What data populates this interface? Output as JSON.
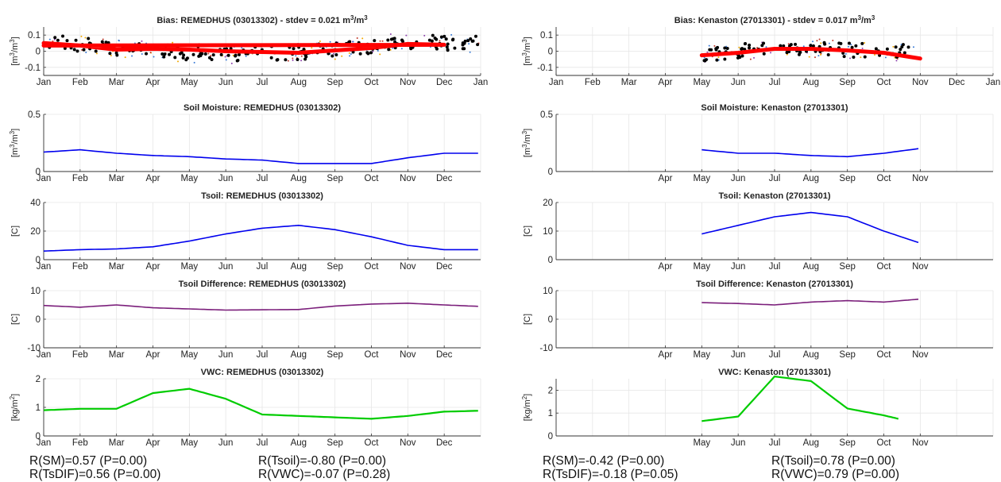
{
  "chart_data": [
    {
      "type": "scatter",
      "title": "Bias: REMEDHUS (03013302) - stdev = 0.021 m³/m³",
      "ylabel": "[m³/m³]",
      "ylim": [
        -0.15,
        0.15
      ],
      "yticks": [
        -0.1,
        0,
        0.1
      ],
      "x_domain": [
        "Jan",
        "Jan"
      ],
      "xticks": [
        "Jan",
        "Feb",
        "Mar",
        "Apr",
        "May",
        "Jun",
        "Jul",
        "Aug",
        "Sep",
        "Oct",
        "Nov",
        "Dec",
        "Jan"
      ],
      "grid": true,
      "colors": {
        "points": "#000000",
        "trend": "#ff0000"
      },
      "trend": {
        "x": [
          "Jan",
          "Feb",
          "Mar",
          "Apr",
          "May",
          "Jun",
          "Jul",
          "Aug",
          "Sep",
          "Oct",
          "Nov",
          "Dec",
          "Jan"
        ],
        "y": [
          0.05,
          0.035,
          0.01,
          0.015,
          0.01,
          0.0,
          -0.005,
          -0.01,
          0.005,
          0.02,
          0.045,
          0.04,
          0.035
        ]
      },
      "points": {
        "x": [
          "Jan",
          "Feb",
          "Mar",
          "Apr",
          "May",
          "Jun",
          "Jul",
          "Aug",
          "Sep",
          "Oct",
          "Nov",
          "Dec"
        ],
        "y": [
          0.06,
          0.04,
          0.02,
          0.01,
          -0.01,
          -0.02,
          -0.01,
          -0.01,
          0.01,
          0.03,
          0.06,
          0.05
        ]
      }
    },
    {
      "type": "line",
      "title": "Soil Moisture: REMEDHUS (03013302)",
      "ylabel": "[m³/m³]",
      "ylim": [
        0,
        0.5
      ],
      "yticks": [
        0,
        0.5
      ],
      "xticks": [
        "Jan",
        "Feb",
        "Mar",
        "Apr",
        "May",
        "Jun",
        "Jul",
        "Aug",
        "Sep",
        "Oct",
        "Nov",
        "Dec"
      ],
      "grid": true,
      "series": [
        {
          "color": "#0000ee",
          "x": [
            "Jan",
            "Feb",
            "Mar",
            "Apr",
            "May",
            "Jun",
            "Jul",
            "Aug",
            "Sep",
            "Oct",
            "Nov",
            "Dec",
            "Dec-end"
          ],
          "values": [
            0.17,
            0.19,
            0.16,
            0.14,
            0.13,
            0.11,
            0.1,
            0.07,
            0.07,
            0.07,
            0.12,
            0.16,
            0.16
          ]
        }
      ]
    },
    {
      "type": "line",
      "title": "Tsoil: REMEDHUS (03013302)",
      "ylabel": "[C]",
      "ylim": [
        0,
        40
      ],
      "yticks": [
        0,
        20,
        40
      ],
      "xticks": [
        "Jan",
        "Feb",
        "Mar",
        "Apr",
        "May",
        "Jun",
        "Jul",
        "Aug",
        "Sep",
        "Oct",
        "Nov",
        "Dec"
      ],
      "grid": true,
      "series": [
        {
          "color": "#0000ee",
          "x": [
            "Jan",
            "Feb",
            "Mar",
            "Apr",
            "May",
            "Jun",
            "Jul",
            "Aug",
            "Sep",
            "Oct",
            "Nov",
            "Dec",
            "Dec-end"
          ],
          "values": [
            6,
            7,
            7.5,
            9,
            13,
            18,
            22,
            24,
            21,
            16,
            10,
            7,
            7
          ]
        }
      ]
    },
    {
      "type": "line",
      "title": "Tsoil Difference: REMEDHUS (03013302)",
      "ylabel": "[C]",
      "ylim": [
        -10,
        10
      ],
      "yticks": [
        -10,
        0,
        10
      ],
      "xticks": [
        "Jan",
        "Feb",
        "Mar",
        "Apr",
        "May",
        "Jun",
        "Jul",
        "Aug",
        "Sep",
        "Oct",
        "Nov",
        "Dec"
      ],
      "grid": true,
      "series": [
        {
          "color": "#7b1f7b",
          "x": [
            "Jan",
            "Feb",
            "Mar",
            "Apr",
            "May",
            "Jun",
            "Jul",
            "Aug",
            "Sep",
            "Oct",
            "Nov",
            "Dec",
            "Dec-end"
          ],
          "values": [
            4.8,
            4.2,
            5.0,
            4.0,
            3.6,
            3.2,
            3.3,
            3.4,
            4.6,
            5.3,
            5.6,
            5.0,
            4.5
          ]
        }
      ]
    },
    {
      "type": "line",
      "title": "VWC: REMEDHUS (03013302)",
      "ylabel": "[kg/m²]",
      "ylim": [
        0,
        2
      ],
      "yticks": [
        0,
        1,
        2
      ],
      "xticks": [
        "Jan",
        "Feb",
        "Mar",
        "Apr",
        "May",
        "Jun",
        "Jul",
        "Aug",
        "Sep",
        "Oct",
        "Nov",
        "Dec"
      ],
      "grid": true,
      "series": [
        {
          "color": "#00cc00",
          "x": [
            "Jan",
            "Feb",
            "Mar",
            "Apr",
            "May",
            "Jun",
            "Jul",
            "Aug",
            "Sep",
            "Oct",
            "Nov",
            "Dec",
            "Dec-end"
          ],
          "values": [
            0.9,
            0.95,
            0.95,
            1.5,
            1.65,
            1.3,
            0.75,
            0.7,
            0.65,
            0.6,
            0.7,
            0.85,
            0.88
          ]
        }
      ]
    },
    {
      "type": "scatter",
      "title": "Bias: Kenaston (27013301) - stdev = 0.017 m³/m³",
      "ylabel": "[m³/m³]",
      "ylim": [
        -0.15,
        0.15
      ],
      "yticks": [
        -0.1,
        0,
        0.1
      ],
      "x_domain": [
        "Jan",
        "Jan"
      ],
      "xticks": [
        "Jan",
        "Feb",
        "Mar",
        "Apr",
        "May",
        "Jun",
        "Jul",
        "Aug",
        "Sep",
        "Oct",
        "Nov",
        "Dec",
        "Jan"
      ],
      "grid": true,
      "colors": {
        "points": "#000000",
        "trend": "#ff0000"
      },
      "trend": {
        "x": [
          "May",
          "Jun",
          "Jul",
          "Aug",
          "Sep",
          "Oct",
          "Nov"
        ],
        "y": [
          -0.025,
          -0.01,
          0.015,
          0.015,
          0.005,
          -0.01,
          -0.045
        ]
      },
      "points": {
        "x": [
          "May",
          "Jun",
          "Jul",
          "Aug",
          "Sep",
          "Oct"
        ],
        "y": [
          -0.02,
          0.0,
          0.02,
          0.02,
          0.01,
          0.0
        ]
      }
    },
    {
      "type": "line",
      "title": "Soil Moisture: Kenaston (27013301)",
      "ylabel": "[m³/m³]",
      "ylim": [
        0,
        0.5
      ],
      "yticks": [
        0,
        0.5
      ],
      "xticks": [
        "Apr",
        "May",
        "Jun",
        "Jul",
        "Aug",
        "Sep",
        "Oct",
        "Nov"
      ],
      "grid": true,
      "series": [
        {
          "color": "#0000ee",
          "x": [
            "May",
            "Jun",
            "Jul",
            "Aug",
            "Sep",
            "Oct",
            "Nov-end"
          ],
          "values": [
            0.19,
            0.16,
            0.16,
            0.14,
            0.13,
            0.16,
            0.2
          ]
        }
      ]
    },
    {
      "type": "line",
      "title": "Tsoil: Kenaston (27013301)",
      "ylabel": "[C]",
      "ylim": [
        0,
        20
      ],
      "yticks": [
        0,
        10,
        20
      ],
      "xticks": [
        "Apr",
        "May",
        "Jun",
        "Jul",
        "Aug",
        "Sep",
        "Oct",
        "Nov"
      ],
      "grid": true,
      "series": [
        {
          "color": "#0000ee",
          "x": [
            "May",
            "Jun",
            "Jul",
            "Aug",
            "Sep",
            "Oct",
            "Nov-end"
          ],
          "values": [
            9,
            12,
            15,
            16.5,
            15,
            10,
            6
          ]
        }
      ]
    },
    {
      "type": "line",
      "title": "Tsoil Difference: Kenaston (27013301)",
      "ylabel": "[C]",
      "ylim": [
        -10,
        10
      ],
      "yticks": [
        -10,
        0,
        10
      ],
      "xticks": [
        "Apr",
        "May",
        "Jun",
        "Jul",
        "Aug",
        "Sep",
        "Oct",
        "Nov"
      ],
      "grid": true,
      "series": [
        {
          "color": "#7b1f7b",
          "x": [
            "May",
            "Jun",
            "Jul",
            "Aug",
            "Sep",
            "Oct",
            "Nov-end"
          ],
          "values": [
            5.8,
            5.5,
            5.0,
            6.0,
            6.5,
            6.0,
            7.0
          ]
        }
      ]
    },
    {
      "type": "line",
      "title": "VWC: Kenaston (27013301)",
      "ylabel": "[kg/m²]",
      "ylim": [
        0,
        2.5
      ],
      "yticks": [
        0,
        1,
        2
      ],
      "xticks": [
        "May",
        "Jun",
        "Jul",
        "Aug",
        "Sep",
        "Oct",
        "Nov"
      ],
      "grid": true,
      "series": [
        {
          "color": "#00cc00",
          "x": [
            "May",
            "Jun",
            "Jul",
            "Aug",
            "Sep",
            "Oct",
            "Oct-end"
          ],
          "values": [
            0.65,
            0.85,
            2.6,
            2.4,
            1.2,
            0.9,
            0.75
          ]
        }
      ]
    }
  ],
  "stats": {
    "remedhus": {
      "r_sm": "R(SM)=0.57 (P=0.00)",
      "r_tsoil": "R(Tsoil)=-0.80 (P=0.00)",
      "r_tsdif": "R(TsDIF)=0.56 (P=0.00)",
      "r_vwc": "R(VWC)=-0.07 (P=0.28)"
    },
    "kenaston": {
      "r_sm": "R(SM)=-0.42 (P=0.00)",
      "r_tsoil": "R(Tsoil)=0.78 (P=0.00)",
      "r_tsdif": "R(TsDIF)=-0.18 (P=0.05)",
      "r_vwc": "R(VWC)=0.79 (P=0.00)"
    }
  }
}
